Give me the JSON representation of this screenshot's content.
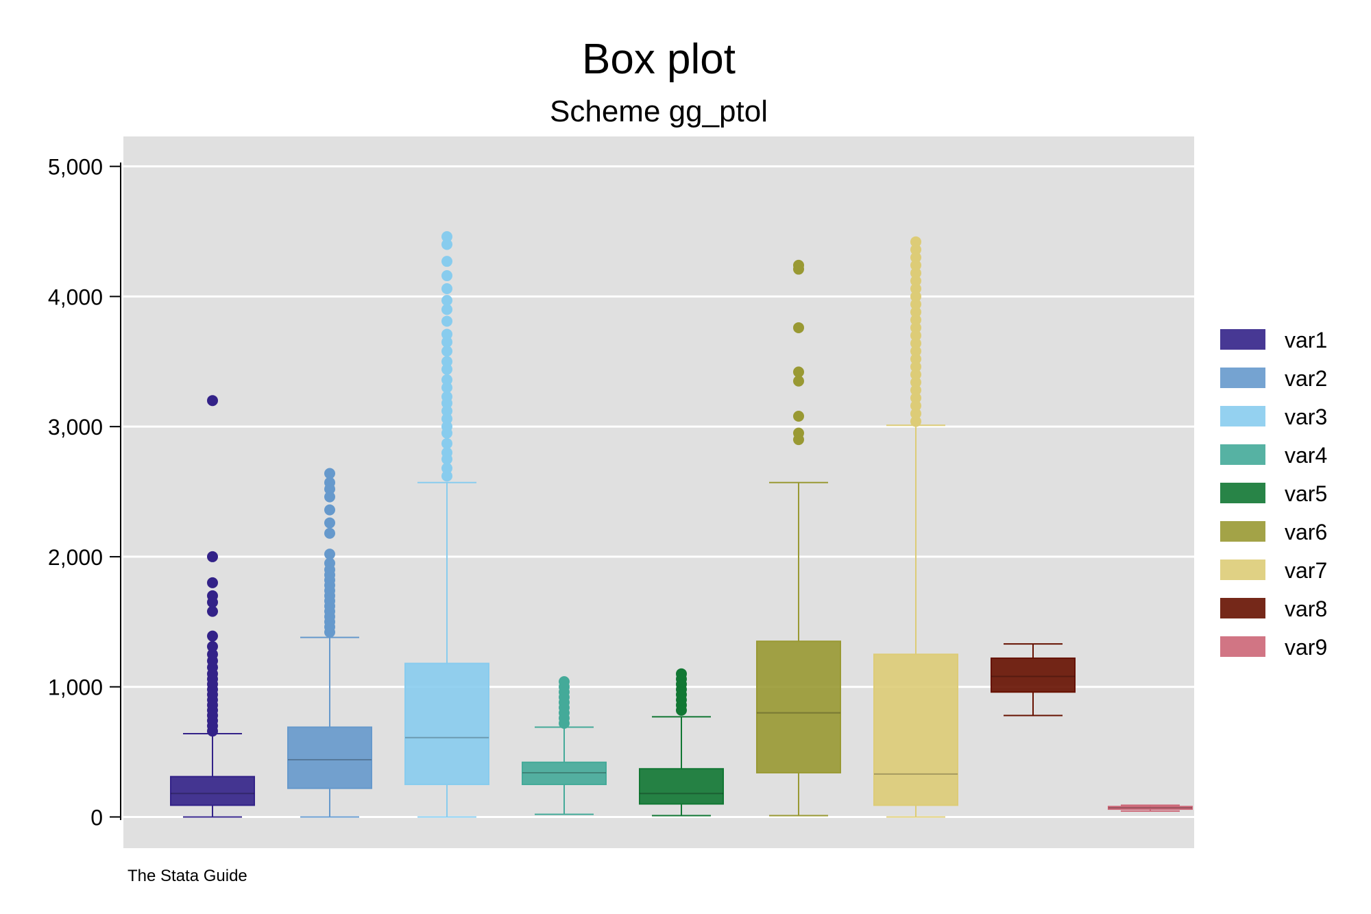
{
  "chart_data": {
    "type": "box",
    "title": "Box plot",
    "subtitle": "Scheme gg_ptol",
    "note": "The Stata Guide",
    "xlabel": "",
    "ylabel": "",
    "ylim": [
      -240,
      5230
    ],
    "yticks": [
      0,
      1000,
      2000,
      3000,
      4000,
      5000
    ],
    "ytick_labels": [
      "0",
      "1,000",
      "2,000",
      "3,000",
      "4,000",
      "5,000"
    ],
    "grid": true,
    "legend_position": "right",
    "series": [
      {
        "name": "var1",
        "color": "#332288",
        "min": 0,
        "q1": 90,
        "median": 180,
        "q3": 310,
        "whisker_high": 640,
        "outliers": [
          660,
          700,
          740,
          780,
          820,
          860,
          900,
          940,
          980,
          1020,
          1060,
          1100,
          1150,
          1200,
          1250,
          1310,
          1390,
          1580,
          1650,
          1700,
          1800,
          2000,
          3200
        ]
      },
      {
        "name": "var2",
        "color": "#6699CC",
        "min": 0,
        "q1": 220,
        "median": 440,
        "q3": 690,
        "whisker_high": 1380,
        "outliers": [
          1420,
          1460,
          1500,
          1540,
          1580,
          1620,
          1660,
          1700,
          1740,
          1780,
          1820,
          1860,
          1900,
          1950,
          2020,
          2180,
          2260,
          2360,
          2460,
          2520,
          2570,
          2640
        ]
      },
      {
        "name": "var3",
        "color": "#88CCEE",
        "min": 0,
        "q1": 250,
        "median": 610,
        "q3": 1180,
        "whisker_high": 2570,
        "outliers": [
          2620,
          2680,
          2750,
          2800,
          2870,
          2950,
          3000,
          3060,
          3120,
          3180,
          3230,
          3300,
          3360,
          3440,
          3500,
          3580,
          3650,
          3710,
          3810,
          3900,
          3970,
          4060,
          4160,
          4270,
          4400,
          4460
        ]
      },
      {
        "name": "var4",
        "color": "#44AA99",
        "min": 20,
        "q1": 250,
        "median": 340,
        "q3": 420,
        "whisker_high": 690,
        "outliers": [
          720,
          760,
          800,
          840,
          880,
          920,
          960,
          1000,
          1040
        ]
      },
      {
        "name": "var5",
        "color": "#117733",
        "min": 10,
        "q1": 100,
        "median": 180,
        "q3": 370,
        "whisker_high": 770,
        "outliers": [
          820,
          860,
          900,
          940,
          980,
          1020,
          1060,
          1100
        ]
      },
      {
        "name": "var6",
        "color": "#999933",
        "min": 10,
        "q1": 340,
        "median": 800,
        "q3": 1350,
        "whisker_high": 2570,
        "outliers": [
          2900,
          2950,
          3080,
          3350,
          3420,
          3760,
          4210,
          4240
        ]
      },
      {
        "name": "var7",
        "color": "#DDCC77",
        "min": 0,
        "q1": 90,
        "median": 330,
        "q3": 1250,
        "whisker_high": 3010,
        "outliers": [
          3040,
          3100,
          3160,
          3220,
          3280,
          3340,
          3400,
          3460,
          3520,
          3580,
          3640,
          3700,
          3760,
          3820,
          3880,
          3940,
          4000,
          4060,
          4120,
          4180,
          4240,
          4300,
          4360,
          4420
        ]
      },
      {
        "name": "var8",
        "color": "#661100",
        "min": 780,
        "q1": 960,
        "median": 1080,
        "q3": 1220,
        "whisker_high": 1330,
        "outliers": []
      },
      {
        "name": "var9",
        "color": "#CC6677",
        "min": 45,
        "q1": 60,
        "median": 70,
        "q3": 80,
        "whisker_high": 90,
        "outliers": []
      }
    ]
  }
}
